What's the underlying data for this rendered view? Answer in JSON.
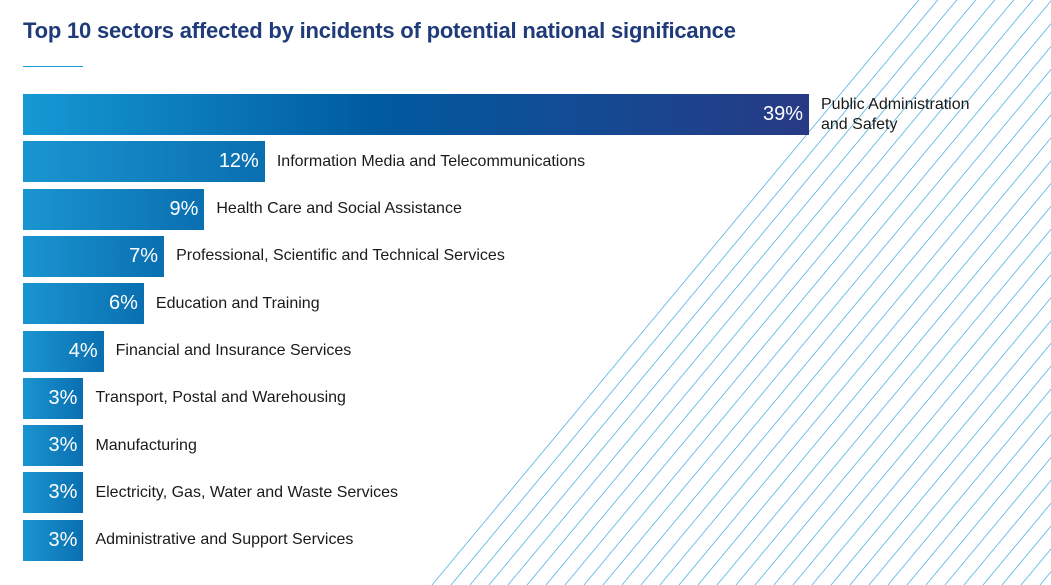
{
  "chart_data": {
    "type": "bar",
    "orientation": "horizontal",
    "title": "Top 10 sectors affected by incidents of potential national significance",
    "categories": [
      "Public Administration\nand Safety",
      "Information Media and Telecommunications",
      "Health Care and Social Assistance",
      "Professional, Scientific and Technical Services",
      "Education and Training",
      "Financial and Insurance Services",
      "Transport, Postal and Warehousing",
      "Manufacturing",
      "Electricity, Gas, Water and Waste Services",
      "Administrative and Support Services"
    ],
    "values": [
      39,
      12,
      9,
      7,
      6,
      4,
      3,
      3,
      3,
      3
    ],
    "value_labels": [
      "39%",
      "12%",
      "9%",
      "7%",
      "6%",
      "4%",
      "3%",
      "3%",
      "3%",
      "3%"
    ],
    "unit": "%",
    "grid": false,
    "legend": "none"
  },
  "colors": {
    "title": "#1f3b7a",
    "bar_start": "#1a95d1",
    "bar_end": "#0a6fb0",
    "top_bar_end": "#283a85",
    "hatch": "#1a9ad6",
    "value_text": "#ffffff",
    "category_text": "#1a1a1a"
  }
}
